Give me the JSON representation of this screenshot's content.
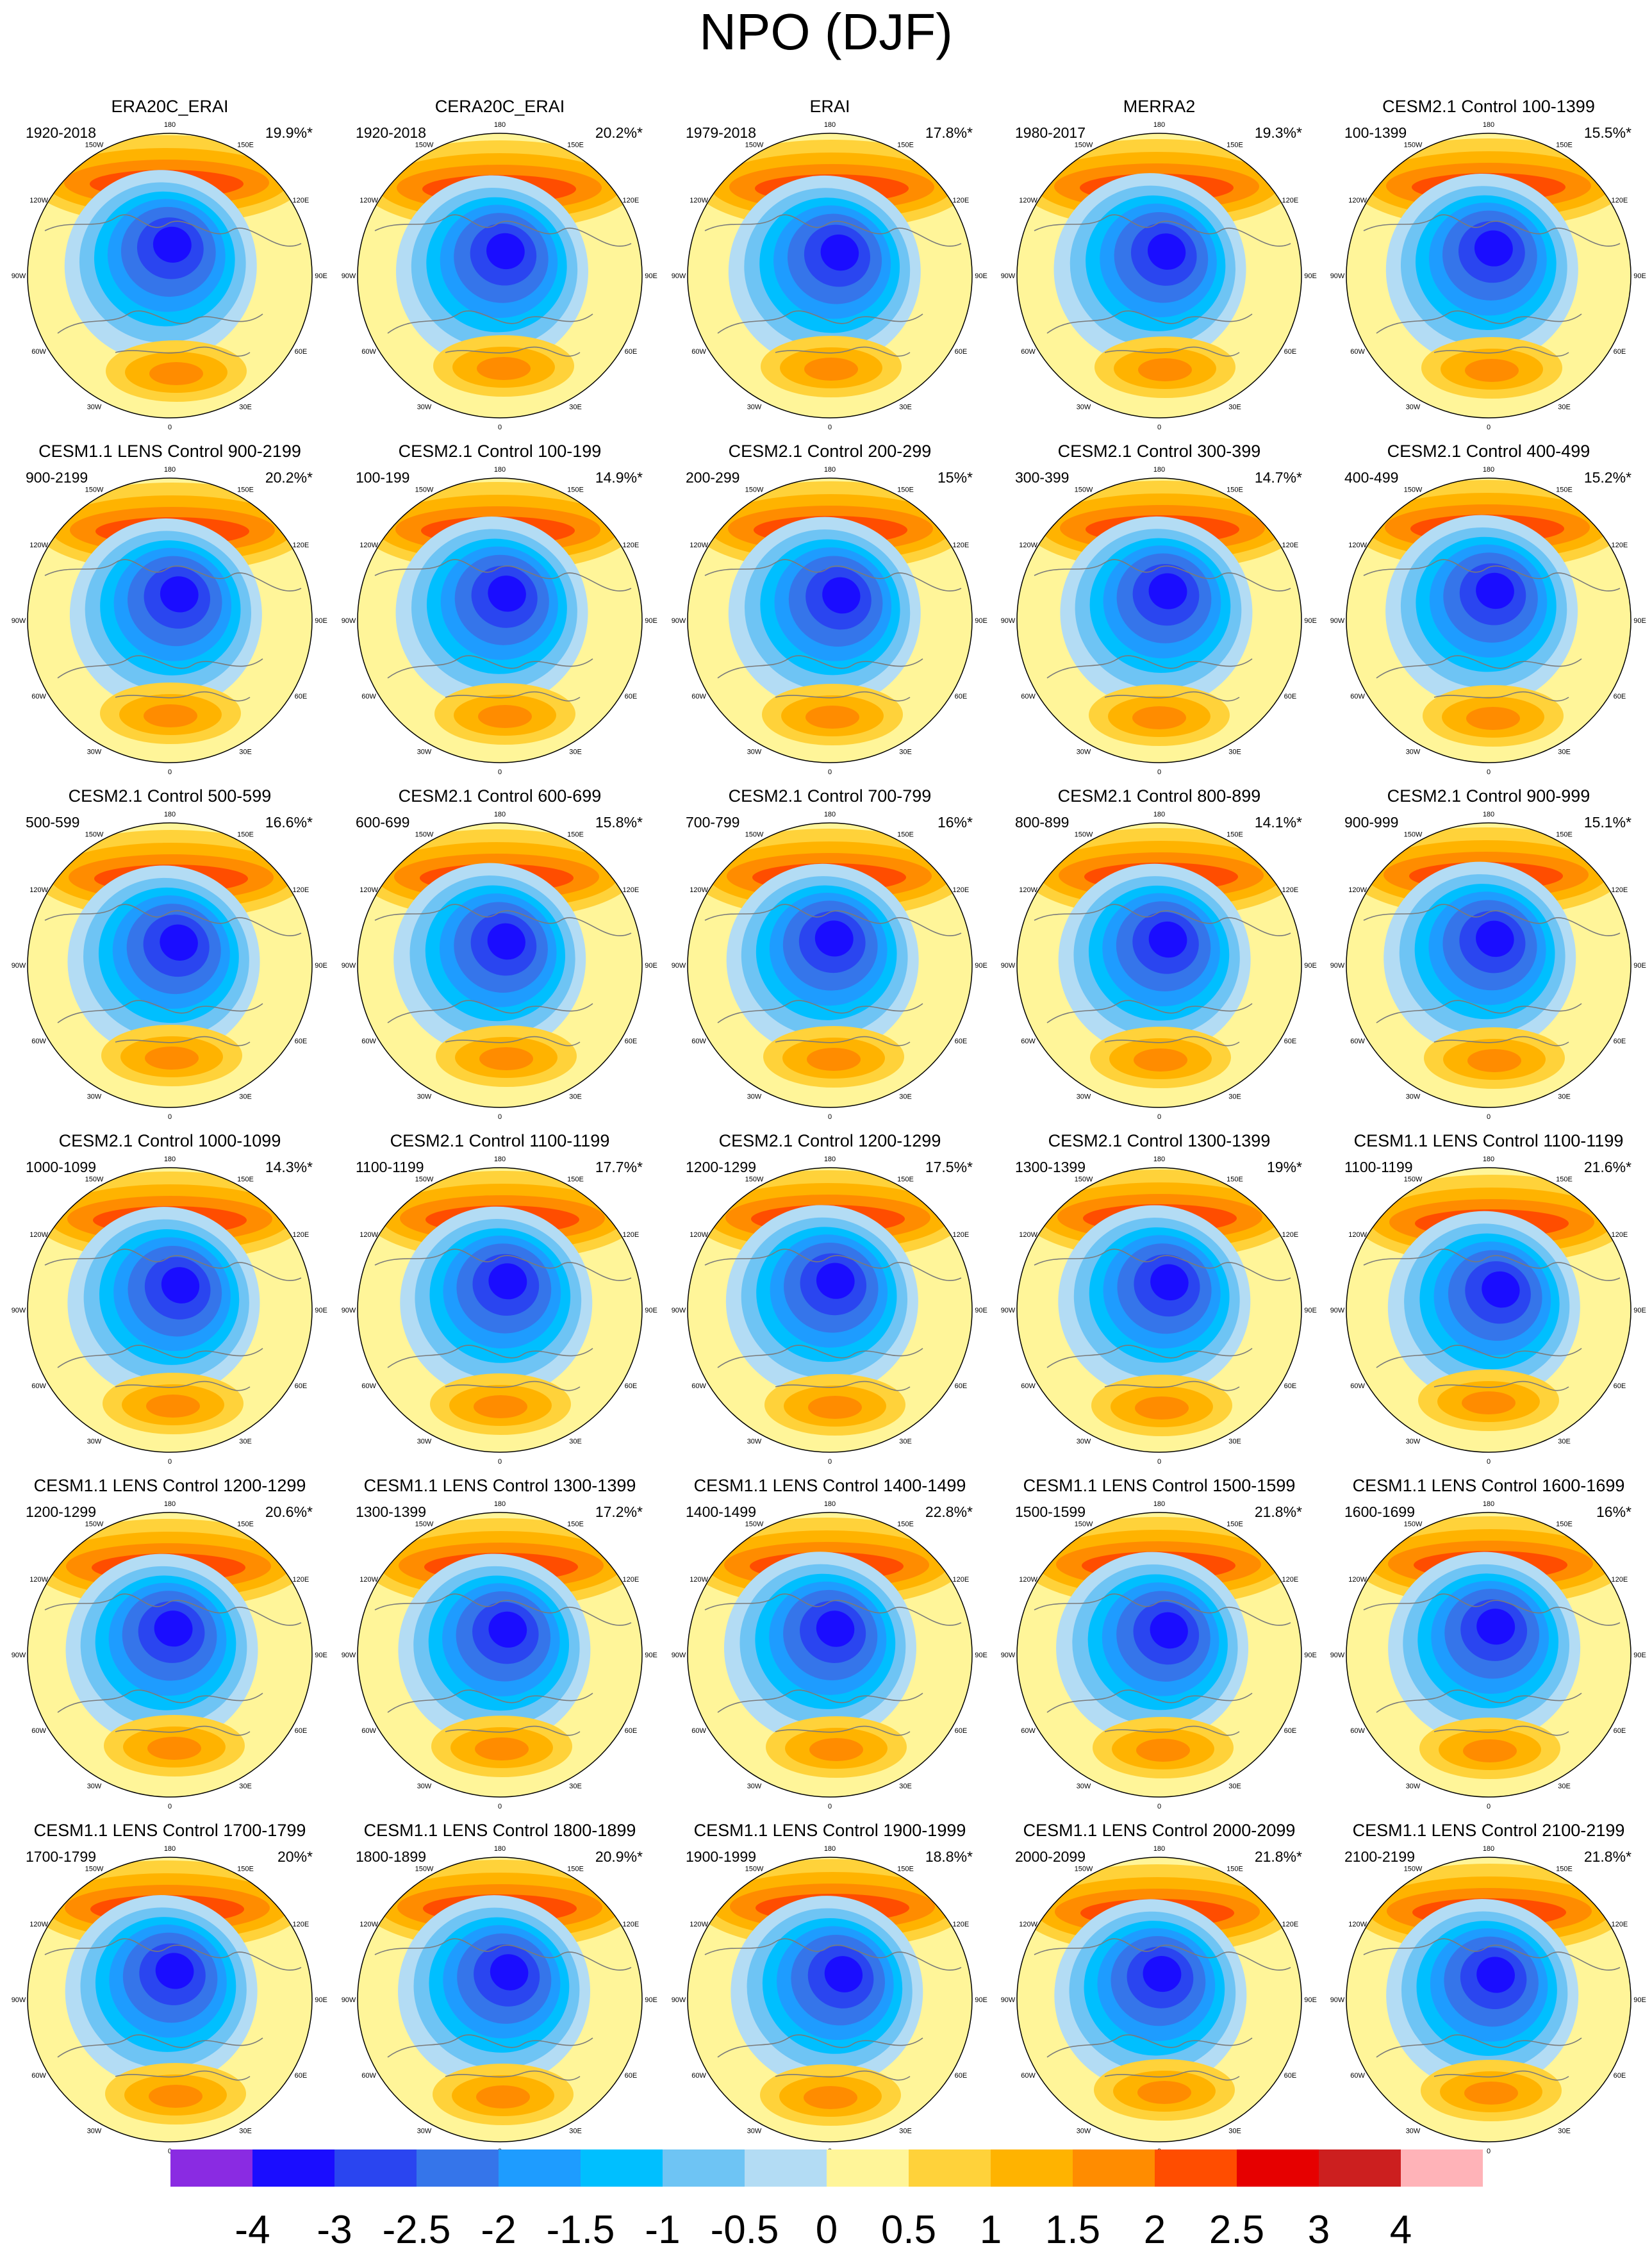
{
  "title": "NPO (DJF)",
  "panels": [
    {
      "title": "ERA20C_ERAI",
      "period": "1920-2018",
      "variance": "19.9%*"
    },
    {
      "title": "CERA20C_ERAI",
      "period": "1920-2018",
      "variance": "20.2%*"
    },
    {
      "title": "ERAI",
      "period": "1979-2018",
      "variance": "17.8%*"
    },
    {
      "title": "MERRA2",
      "period": "1980-2017",
      "variance": "19.3%*"
    },
    {
      "title": "CESM2.1 Control 100-1399",
      "period": "100-1399",
      "variance": "15.5%*"
    },
    {
      "title": "CESM1.1 LENS Control 900-2199",
      "period": "900-2199",
      "variance": "20.2%*"
    },
    {
      "title": "CESM2.1 Control 100-199",
      "period": "100-199",
      "variance": "14.9%*"
    },
    {
      "title": "CESM2.1 Control 200-299",
      "period": "200-299",
      "variance": "15%*"
    },
    {
      "title": "CESM2.1 Control 300-399",
      "period": "300-399",
      "variance": "14.7%*"
    },
    {
      "title": "CESM2.1 Control 400-499",
      "period": "400-499",
      "variance": "15.2%*"
    },
    {
      "title": "CESM2.1 Control 500-599",
      "period": "500-599",
      "variance": "16.6%*"
    },
    {
      "title": "CESM2.1 Control 600-699",
      "period": "600-699",
      "variance": "15.8%*"
    },
    {
      "title": "CESM2.1 Control 700-799",
      "period": "700-799",
      "variance": "16%*"
    },
    {
      "title": "CESM2.1 Control 800-899",
      "period": "800-899",
      "variance": "14.1%*"
    },
    {
      "title": "CESM2.1 Control 900-999",
      "period": "900-999",
      "variance": "15.1%*"
    },
    {
      "title": "CESM2.1 Control 1000-1099",
      "period": "1000-1099",
      "variance": "14.3%*"
    },
    {
      "title": "CESM2.1 Control 1100-1199",
      "period": "1100-1199",
      "variance": "17.7%*"
    },
    {
      "title": "CESM2.1 Control 1200-1299",
      "period": "1200-1299",
      "variance": "17.5%*"
    },
    {
      "title": "CESM2.1 Control 1300-1399",
      "period": "1300-1399",
      "variance": "19%*"
    },
    {
      "title": "CESM1.1 LENS Control 1100-1199",
      "period": "1100-1199",
      "variance": "21.6%*"
    },
    {
      "title": "CESM1.1 LENS Control 1200-1299",
      "period": "1200-1299",
      "variance": "20.6%*"
    },
    {
      "title": "CESM1.1 LENS Control 1300-1399",
      "period": "1300-1399",
      "variance": "17.2%*"
    },
    {
      "title": "CESM1.1 LENS Control 1400-1499",
      "period": "1400-1499",
      "variance": "22.8%*"
    },
    {
      "title": "CESM1.1 LENS Control 1500-1599",
      "period": "1500-1599",
      "variance": "21.8%*"
    },
    {
      "title": "CESM1.1 LENS Control 1600-1699",
      "period": "1600-1699",
      "variance": "16%*"
    },
    {
      "title": "CESM1.1 LENS Control 1700-1799",
      "period": "1700-1799",
      "variance": "20%*"
    },
    {
      "title": "CESM1.1 LENS Control 1800-1899",
      "period": "1800-1899",
      "variance": "20.9%*"
    },
    {
      "title": "CESM1.1 LENS Control 1900-1999",
      "period": "1900-1999",
      "variance": "18.8%*"
    },
    {
      "title": "CESM1.1 LENS Control 2000-2099",
      "period": "2000-2099",
      "variance": "21.8%*"
    },
    {
      "title": "CESM1.1 LENS Control 2100-2199",
      "period": "2100-2199",
      "variance": "21.8%*"
    }
  ],
  "longitude_labels": [
    "180",
    "150E",
    "120E",
    "90E",
    "60E",
    "30E",
    "0",
    "30W",
    "60W",
    "90W",
    "120W",
    "150W"
  ],
  "colorbar": {
    "labels": [
      "-4",
      "-3",
      "-2.5",
      "-2",
      "-1.5",
      "-1",
      "-0.5",
      "0",
      "0.5",
      "1",
      "1.5",
      "2",
      "2.5",
      "3",
      "4"
    ],
    "colors": [
      "#8a2be2",
      "#1a0dff",
      "#2a45f0",
      "#3575ea",
      "#1e9cff",
      "#00bfff",
      "#6ec4f4",
      "#b3dcf4",
      "#fff599",
      "#ffd23a",
      "#ffb300",
      "#ff8c00",
      "#ff4d00",
      "#e60000",
      "#cc1f1f",
      "#ffb3b8"
    ]
  }
}
